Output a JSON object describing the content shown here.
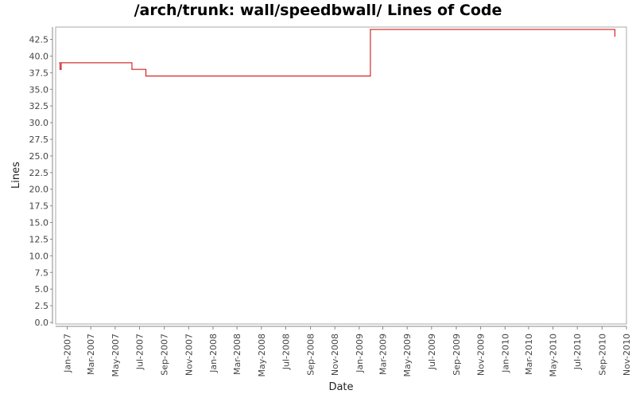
{
  "chart_data": {
    "type": "line",
    "title": "/arch/trunk: wall/speedbwall/ Lines of Code",
    "xlabel": "Date",
    "ylabel": "Lines",
    "ylim": [
      0,
      44
    ],
    "xlim": [
      "2006-12-03",
      "2010-11-01"
    ],
    "y_ticks": [
      "0.0",
      "2.5",
      "5.0",
      "7.5",
      "10.0",
      "12.5",
      "15.0",
      "17.5",
      "20.0",
      "22.5",
      "25.0",
      "27.5",
      "30.0",
      "32.5",
      "35.0",
      "37.5",
      "40.0",
      "42.5"
    ],
    "x_ticks": [
      {
        "date": "2007-01-01",
        "label": "Jan-2007"
      },
      {
        "date": "2007-03-01",
        "label": "Mar-2007"
      },
      {
        "date": "2007-05-01",
        "label": "May-2007"
      },
      {
        "date": "2007-07-01",
        "label": "Jul-2007"
      },
      {
        "date": "2007-09-01",
        "label": "Sep-2007"
      },
      {
        "date": "2007-11-01",
        "label": "Nov-2007"
      },
      {
        "date": "2008-01-01",
        "label": "Jan-2008"
      },
      {
        "date": "2008-03-01",
        "label": "Mar-2008"
      },
      {
        "date": "2008-05-01",
        "label": "May-2008"
      },
      {
        "date": "2008-07-01",
        "label": "Jul-2008"
      },
      {
        "date": "2008-09-01",
        "label": "Sep-2008"
      },
      {
        "date": "2008-11-01",
        "label": "Nov-2008"
      },
      {
        "date": "2009-01-01",
        "label": "Jan-2009"
      },
      {
        "date": "2009-03-01",
        "label": "Mar-2009"
      },
      {
        "date": "2009-05-01",
        "label": "May-2009"
      },
      {
        "date": "2009-07-01",
        "label": "Jul-2009"
      },
      {
        "date": "2009-09-01",
        "label": "Sep-2009"
      },
      {
        "date": "2009-11-01",
        "label": "Nov-2009"
      },
      {
        "date": "2010-01-01",
        "label": "Jan-2010"
      },
      {
        "date": "2010-03-01",
        "label": "Mar-2010"
      },
      {
        "date": "2010-05-01",
        "label": "May-2010"
      },
      {
        "date": "2010-07-01",
        "label": "Jul-2010"
      },
      {
        "date": "2010-09-01",
        "label": "Sep-2010"
      },
      {
        "date": "2010-11-01",
        "label": "Nov-2010"
      }
    ],
    "series": [
      {
        "color": "#cc0000",
        "step": true,
        "points": [
          {
            "x": "2006-12-13",
            "y": 39
          },
          {
            "x": "2006-12-14",
            "y": 38
          },
          {
            "x": "2006-12-17",
            "y": 39
          },
          {
            "x": "2007-06-12",
            "y": 38
          },
          {
            "x": "2007-07-17",
            "y": 37
          },
          {
            "x": "2009-01-29",
            "y": 44
          },
          {
            "x": "2010-10-03",
            "y": 43
          }
        ],
        "end_x": "2010-10-03"
      }
    ],
    "grid": false,
    "legend": "none"
  }
}
